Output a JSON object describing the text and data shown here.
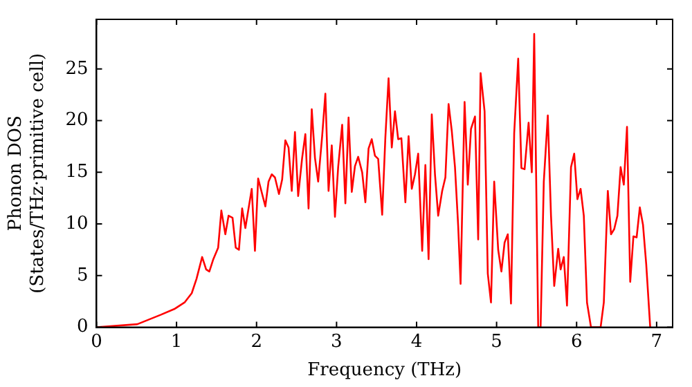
{
  "chart_data": {
    "type": "line",
    "xlabel": "Frequency (THz)",
    "ylabel": "Phonon DOS\n(States/THz·primitive cell)",
    "xlim": [
      0,
      7.2
    ],
    "ylim": [
      0,
      29.8
    ],
    "xticks": [
      0,
      1,
      2,
      3,
      4,
      5,
      6,
      7
    ],
    "yticks": [
      0,
      5,
      10,
      15,
      20,
      25
    ],
    "grid": false,
    "legend": false,
    "marker": "none",
    "line_style": "solid",
    "series": [
      {
        "color": "#ff0000",
        "x": [
          0,
          0.51,
          0.8,
          0.98,
          1.1,
          1.19,
          1.25,
          1.32,
          1.37,
          1.41,
          1.46,
          1.52,
          1.56,
          1.61,
          1.65,
          1.7,
          1.74,
          1.78,
          1.82,
          1.86,
          1.9,
          1.94,
          1.98,
          2.02,
          2.07,
          2.11,
          2.15,
          2.19,
          2.23,
          2.28,
          2.32,
          2.36,
          2.4,
          2.44,
          2.48,
          2.52,
          2.57,
          2.61,
          2.65,
          2.69,
          2.73,
          2.77,
          2.82,
          2.86,
          2.9,
          2.94,
          2.98,
          3.02,
          3.07,
          3.11,
          3.15,
          3.19,
          3.23,
          3.27,
          3.32,
          3.36,
          3.4,
          3.44,
          3.48,
          3.52,
          3.57,
          3.61,
          3.65,
          3.69,
          3.73,
          3.77,
          3.81,
          3.86,
          3.9,
          3.94,
          3.98,
          4.02,
          4.07,
          4.11,
          4.15,
          4.19,
          4.23,
          4.27,
          4.32,
          4.36,
          4.4,
          4.44,
          4.48,
          4.52,
          4.55,
          4.6,
          4.64,
          4.68,
          4.73,
          4.77,
          4.8,
          4.85,
          4.89,
          4.93,
          4.97,
          5.02,
          5.06,
          5.1,
          5.14,
          5.18,
          5.22,
          5.27,
          5.31,
          5.35,
          5.4,
          5.44,
          5.47,
          5.52,
          5.55,
          5.59,
          5.64,
          5.68,
          5.72,
          5.77,
          5.8,
          5.84,
          5.88,
          5.93,
          5.97,
          6.01,
          6.05,
          6.09,
          6.13,
          6.18,
          6.3,
          6.34,
          6.39,
          6.43,
          6.47,
          6.51,
          6.55,
          6.59,
          6.63,
          6.67,
          6.71,
          6.75,
          6.79,
          6.83,
          6.87,
          6.92
        ],
        "values": [
          0,
          0.3,
          1.2,
          1.8,
          2.4,
          3.3,
          4.7,
          6.8,
          5.6,
          5.4,
          6.6,
          7.7,
          11.3,
          9,
          10.8,
          10.6,
          7.7,
          7.5,
          11.5,
          9.6,
          11.5,
          13.4,
          7.4,
          14.4,
          12.9,
          11.7,
          14.1,
          14.8,
          14.5,
          12.9,
          14.3,
          18.1,
          17.4,
          13.2,
          18.9,
          12.7,
          16.4,
          18.7,
          11.5,
          21.1,
          16.4,
          14.1,
          18.5,
          22.6,
          13.2,
          17.6,
          10.7,
          15.5,
          19.6,
          12,
          20.3,
          13.1,
          15.6,
          16.5,
          15,
          12.1,
          17.3,
          18.2,
          16.6,
          16.3,
          10.9,
          18.4,
          24.1,
          17.4,
          20.9,
          18.2,
          18.3,
          12.1,
          18.5,
          13.4,
          14.8,
          16.8,
          7.4,
          15.7,
          6.6,
          20.6,
          14.8,
          10.8,
          13.2,
          14.5,
          21.6,
          19,
          15.5,
          9.8,
          4.2,
          21.8,
          13.8,
          19.2,
          20.4,
          8.5,
          24.6,
          20.9,
          5.2,
          2.4,
          14.1,
          7.5,
          5.4,
          8.2,
          9,
          2.3,
          18.8,
          26,
          15.4,
          15.3,
          19.8,
          15,
          28.4,
          0,
          0,
          14.1,
          20.5,
          10.8,
          4,
          7.6,
          5.6,
          6.8,
          2.1,
          15.5,
          16.8,
          12.4,
          13.4,
          10.8,
          2.4,
          0,
          0,
          2.4,
          13.2,
          9,
          9.5,
          10.8,
          15.5,
          13.8,
          19.4,
          4.4,
          8.8,
          8.7,
          11.6,
          9.9,
          6.1,
          0
        ]
      }
    ]
  }
}
